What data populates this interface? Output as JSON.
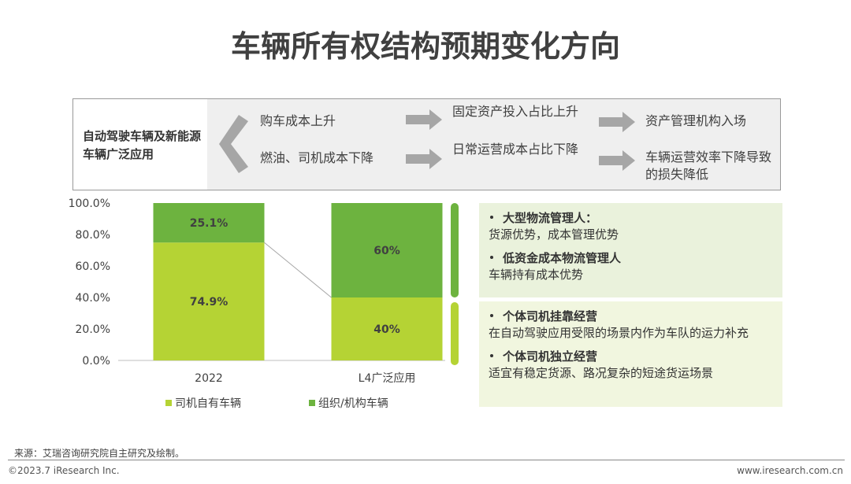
{
  "header": {
    "title": "车辆所有权结构预期变化方向"
  },
  "flow": {
    "source": "自动驾驶车辆及新能源车辆广泛应用",
    "rows": [
      [
        "购车成本上升",
        "固定资产投入占比上升",
        "资产管理机构入场"
      ],
      [
        "燃油、司机成本下降",
        "日常运营成本占比下降",
        "车辆运营效率下降导致的损失降低"
      ]
    ]
  },
  "chart_data": {
    "type": "stacked-bar",
    "categories": [
      "2022",
      "L4广泛应用"
    ],
    "series": [
      {
        "name": "司机自有车辆",
        "color": "#b5d334",
        "values": [
          74.9,
          40
        ],
        "value_labels": [
          "74.9%",
          "40%"
        ]
      },
      {
        "name": "组织/机构车辆",
        "color": "#6db33f",
        "values": [
          25.1,
          60
        ],
        "value_labels": [
          "25.1%",
          "60%"
        ]
      }
    ],
    "ylim": [
      0,
      100
    ],
    "yticks": [
      {
        "value": 0,
        "label": "0.0%"
      },
      {
        "value": 20,
        "label": "20.0%"
      },
      {
        "value": 40,
        "label": "40.0%"
      },
      {
        "value": 60,
        "label": "60.0%"
      },
      {
        "value": 80,
        "label": "80.0%"
      },
      {
        "value": 100,
        "label": "100.0%"
      }
    ]
  },
  "panels": [
    {
      "items": [
        {
          "heading": "大型物流管理人：",
          "text": "货源优势，成本管理优势"
        },
        {
          "heading": "低资金成本物流管理人",
          "text": "车辆持有成本优势"
        }
      ]
    },
    {
      "items": [
        {
          "heading": "个体司机挂靠经营",
          "text": "在自动驾驶应用受限的场景内作为车队的运力补充"
        },
        {
          "heading": "个体司机独立经营",
          "text": "适宜有稳定货源、路况复杂的短途货运场景"
        }
      ]
    }
  ],
  "footer": {
    "source": "来源：艾瑞咨询研究院自主研究及绘制。",
    "copyright": "©2023.7 iResearch Inc.",
    "url": "www.iresearch.com.cn"
  }
}
